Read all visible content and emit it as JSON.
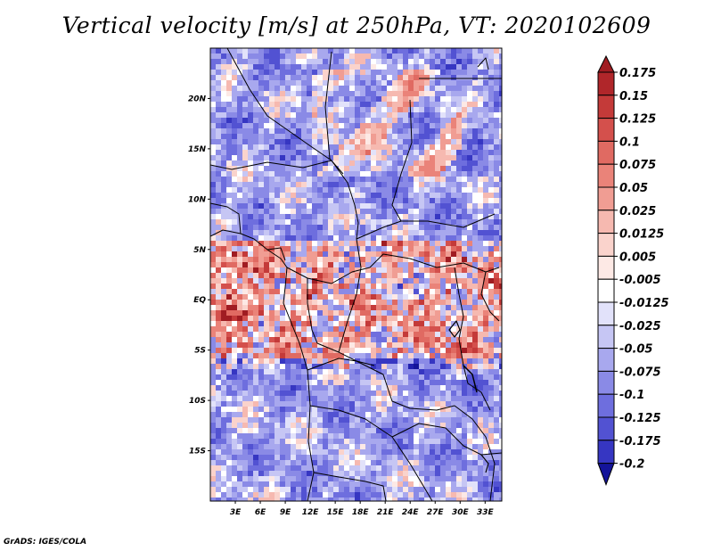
{
  "title": "Vertical velocity [m/s] at 250hPa, VT: 2020102609",
  "credit": "GrADS: IGES/COLA",
  "chart_data": {
    "type": "heatmap",
    "title": "Vertical velocity [m/s] at 250hPa, VT: 2020102609",
    "variable": "Vertical velocity",
    "units": "m/s",
    "level": "250hPa",
    "valid_time": "2020102609",
    "x_range": [
      0,
      35
    ],
    "y_range": [
      -20,
      25
    ],
    "lat_ticks": [
      {
        "value": 20,
        "label": "20N"
      },
      {
        "value": 15,
        "label": "15N"
      },
      {
        "value": 10,
        "label": "10N"
      },
      {
        "value": 5,
        "label": "5N"
      },
      {
        "value": 0,
        "label": "EQ"
      },
      {
        "value": -5,
        "label": "5S"
      },
      {
        "value": -10,
        "label": "10S"
      },
      {
        "value": -15,
        "label": "15S"
      }
    ],
    "lon_ticks": [
      {
        "value": 3,
        "label": "3E"
      },
      {
        "value": 6,
        "label": "6E"
      },
      {
        "value": 9,
        "label": "9E"
      },
      {
        "value": 12,
        "label": "12E"
      },
      {
        "value": 15,
        "label": "15E"
      },
      {
        "value": 18,
        "label": "18E"
      },
      {
        "value": 21,
        "label": "21E"
      },
      {
        "value": 24,
        "label": "24E"
      },
      {
        "value": 27,
        "label": "27E"
      },
      {
        "value": 30,
        "label": "30E"
      },
      {
        "value": 33,
        "label": "33E"
      }
    ],
    "colorbar": {
      "levels": [
        {
          "label": "0.175",
          "color": "#b0262a"
        },
        {
          "label": "0.15",
          "color": "#c43a39"
        },
        {
          "label": "0.125",
          "color": "#d4504c"
        },
        {
          "label": "0.1",
          "color": "#e06a62"
        },
        {
          "label": "0.075",
          "color": "#ea8379"
        },
        {
          "label": "0.05",
          "color": "#f09d93"
        },
        {
          "label": "0.025",
          "color": "#f6b9b0"
        },
        {
          "label": "0.0125",
          "color": "#fad3cc"
        },
        {
          "label": "0.005",
          "color": "#fde9e5"
        },
        {
          "label": "-0.005",
          "color": "#ffffff"
        },
        {
          "label": "-0.0125",
          "color": "#e2e2fa"
        },
        {
          "label": "-0.025",
          "color": "#c6c6f4"
        },
        {
          "label": "-0.05",
          "color": "#a8a8ee"
        },
        {
          "label": "-0.075",
          "color": "#8a8ae6"
        },
        {
          "label": "-0.1",
          "color": "#6e6ede"
        },
        {
          "label": "-0.125",
          "color": "#5252d2"
        },
        {
          "label": "-0.175",
          "color": "#3636c2"
        },
        {
          "label": "-0.2",
          "color": "#2020ae"
        }
      ],
      "top_color": "#a01c22",
      "bottom_color": "#14149a"
    }
  }
}
